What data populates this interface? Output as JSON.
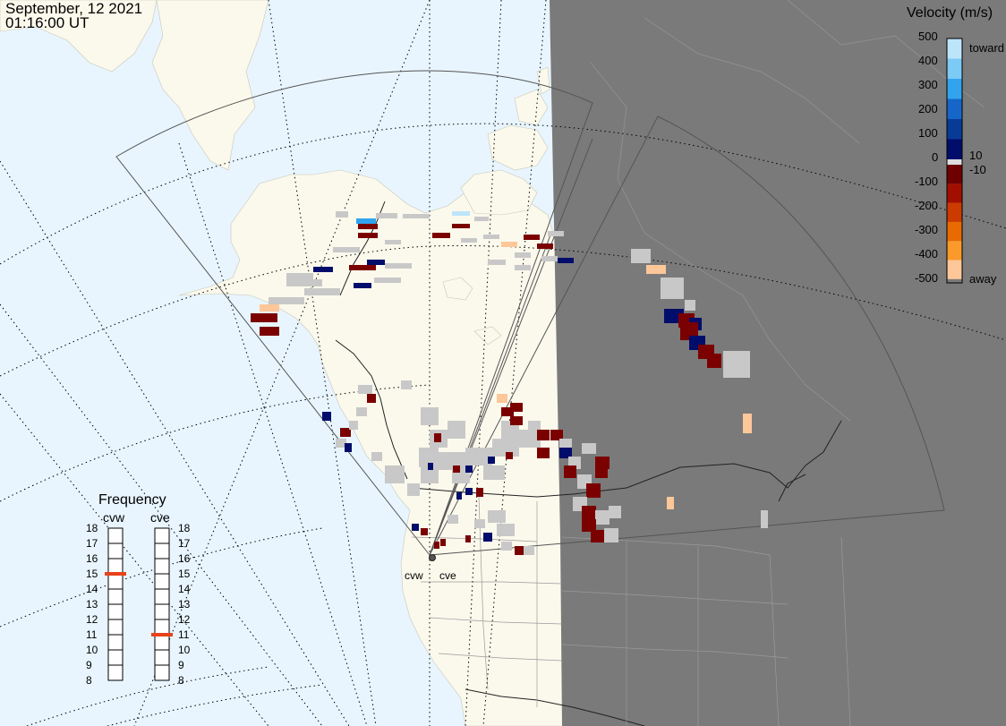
{
  "header": {
    "date": "September, 12 2021",
    "time": "01:16:00 UT"
  },
  "colorbar": {
    "title": "Velocity (m/s)",
    "ticks": [
      "500",
      "400",
      "300",
      "200",
      "100",
      "0",
      "-100",
      "-200",
      "-300",
      "-400",
      "-500"
    ],
    "inner_labels": [
      "10",
      "-10"
    ],
    "toward_label": "toward",
    "away_label": "away",
    "colors": [
      "#bde5fa",
      "#7ccaf6",
      "#32a4ee",
      "#1566c8",
      "#083b95",
      "#000d6b",
      "#6f0000",
      "#a20f00",
      "#cd3a00",
      "#e86a00",
      "#fb9a2a",
      "#fdc79a"
    ]
  },
  "frequency_panel": {
    "title": "Frequency",
    "radars": [
      "cvw",
      "cve"
    ],
    "scale": [
      "18",
      "17",
      "16",
      "15",
      "14",
      "13",
      "12",
      "11",
      "10",
      "9",
      "8"
    ],
    "cvw_mhz": 15,
    "cve_mhz": 11,
    "marker_color": "#e8421a"
  },
  "sites": [
    "cvw",
    "cve"
  ],
  "map_colors": {
    "ocean": "#e8f5fe",
    "land": "#fbf9ec",
    "night": "#7a7a7a",
    "ground_scatter": "#c8c8c8"
  }
}
